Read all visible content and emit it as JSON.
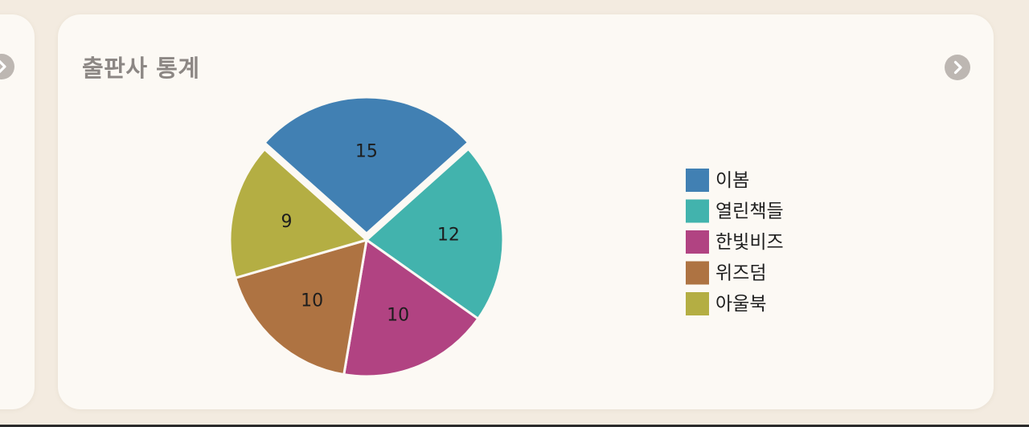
{
  "card": {
    "title": "출판사 통계"
  },
  "chart_data": {
    "type": "pie",
    "categories": [
      "이봄",
      "열린책들",
      "한빛비즈",
      "위즈덤",
      "아울북"
    ],
    "values": [
      15,
      12,
      10,
      10,
      9
    ],
    "colors": [
      "#4180b3",
      "#42b3ad",
      "#b14382",
      "#ae7342",
      "#b4ae43"
    ],
    "exploded_slice": "이봄",
    "legend_position": "right"
  }
}
